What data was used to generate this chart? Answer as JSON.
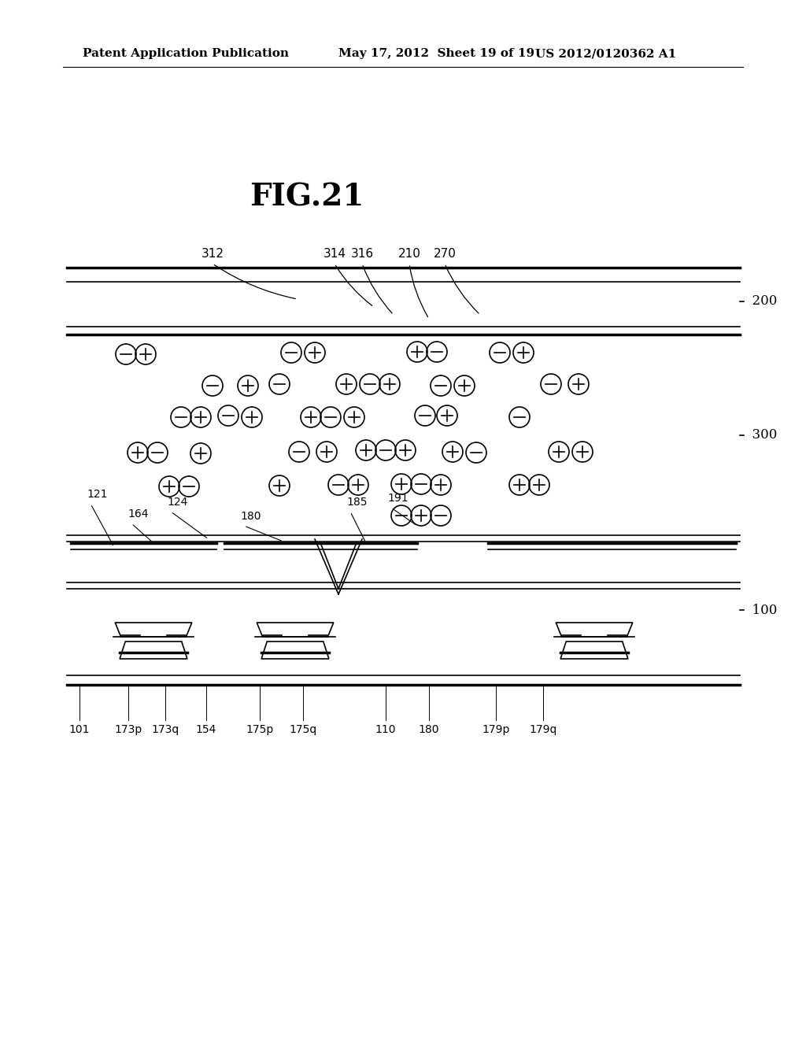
{
  "fig_title": "FIG.21",
  "header_left": "Patent Application Publication",
  "header_center": "May 17, 2012  Sheet 19 of 19",
  "header_right": "US 2012/0120362 A1",
  "bg_color": "#ffffff",
  "text_color": "#000000",
  "line_color": "#000000"
}
